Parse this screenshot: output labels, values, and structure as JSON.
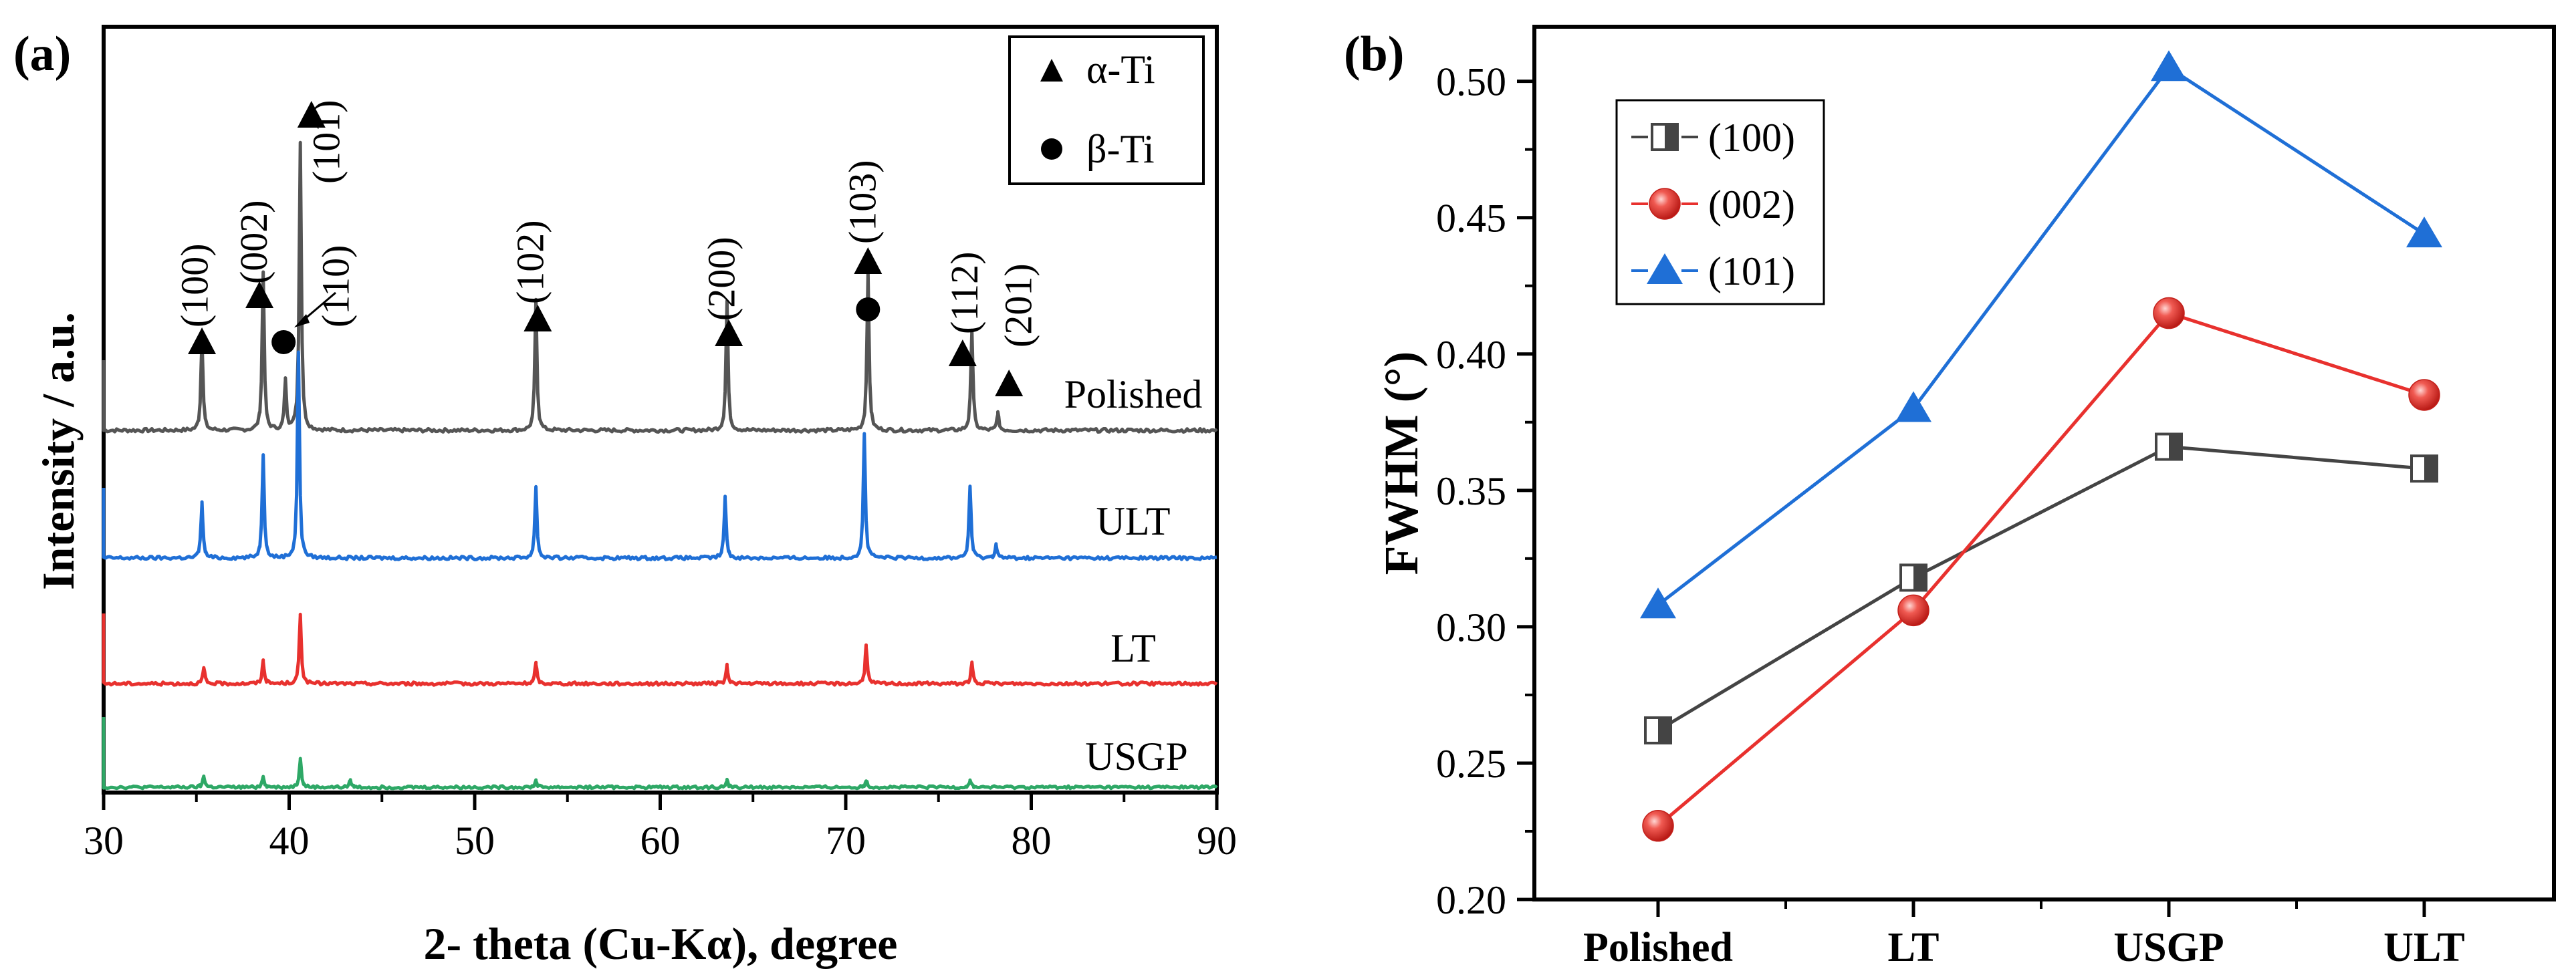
{
  "chart_data": [
    {
      "panel": "(a)",
      "type": "line",
      "xlabel": "2- theta (Cu-Kα), degree",
      "ylabel": "Intensity / a.u.",
      "xlim": [
        30,
        90
      ],
      "xticks": [
        "30",
        "40",
        "50",
        "60",
        "70",
        "80",
        "90"
      ],
      "series": [
        {
          "name": "Polished",
          "color": "#555555",
          "peaks": [
            [
              35.3,
              0.32
            ],
            [
              38.6,
              0.55
            ],
            [
              39.8,
              0.17
            ],
            [
              40.6,
              1.0
            ],
            [
              53.3,
              0.45
            ],
            [
              63.6,
              0.45
            ],
            [
              71.2,
              0.55
            ],
            [
              76.8,
              0.35
            ],
            [
              78.2,
              0.06
            ]
          ]
        },
        {
          "name": "ULT",
          "color": "#1f6fd6",
          "peaks": [
            [
              35.3,
              0.2
            ],
            [
              38.6,
              0.38
            ],
            [
              40.5,
              0.75
            ],
            [
              53.3,
              0.26
            ],
            [
              63.5,
              0.22
            ],
            [
              71.0,
              0.45
            ],
            [
              76.7,
              0.26
            ],
            [
              78.1,
              0.05
            ]
          ]
        },
        {
          "name": "LT",
          "color": "#e8312e",
          "peaks": [
            [
              35.4,
              0.06
            ],
            [
              38.6,
              0.09
            ],
            [
              40.6,
              0.27
            ],
            [
              53.3,
              0.08
            ],
            [
              63.6,
              0.07
            ],
            [
              71.1,
              0.15
            ],
            [
              76.8,
              0.08
            ]
          ]
        },
        {
          "name": "USGP",
          "color": "#2ea866",
          "peaks": [
            [
              35.4,
              0.05
            ],
            [
              38.6,
              0.05
            ],
            [
              40.6,
              0.13
            ],
            [
              43.3,
              0.03
            ],
            [
              53.3,
              0.03
            ],
            [
              63.6,
              0.03
            ],
            [
              71.1,
              0.03
            ],
            [
              76.7,
              0.03
            ]
          ]
        }
      ],
      "peak_labels": [
        {
          "text": "(100)",
          "x": 35.4
        },
        {
          "text": "(002)",
          "x": 38.6
        },
        {
          "text": "(101)",
          "x": 40.6
        },
        {
          "text": "(110)",
          "x": 39.7
        },
        {
          "text": "(102)",
          "x": 53.4
        },
        {
          "text": "(200)",
          "x": 63.7
        },
        {
          "text": "(103)",
          "x": 71.2
        },
        {
          "text": "(112)",
          "x": 76.8
        },
        {
          "text": "(201)",
          "x": 78.7
        }
      ],
      "legend": [
        {
          "symbol": "triangle",
          "label": "α-Ti"
        },
        {
          "symbol": "circle",
          "label": "β-Ti"
        }
      ]
    },
    {
      "panel": "(b)",
      "type": "line",
      "xlabel": "",
      "ylabel": "FWHM (°)",
      "categories": [
        "Polished",
        "LT",
        "USGP",
        "ULT"
      ],
      "ylim": [
        0.2,
        0.52
      ],
      "yticks": [
        "0.20",
        "0.25",
        "0.30",
        "0.35",
        "0.40",
        "0.45",
        "0.50"
      ],
      "series": [
        {
          "name": "(100)",
          "marker": "half-square",
          "color": "#444444",
          "values": [
            0.262,
            0.318,
            0.366,
            0.358
          ]
        },
        {
          "name": "(002)",
          "marker": "sphere",
          "color": "#e8312e",
          "values": [
            0.227,
            0.306,
            0.415,
            0.385
          ]
        },
        {
          "name": "(101)",
          "marker": "triangle",
          "color": "#1f6fd6",
          "values": [
            0.308,
            0.38,
            0.505,
            0.444
          ]
        }
      ],
      "legend_position": "top-left"
    }
  ]
}
